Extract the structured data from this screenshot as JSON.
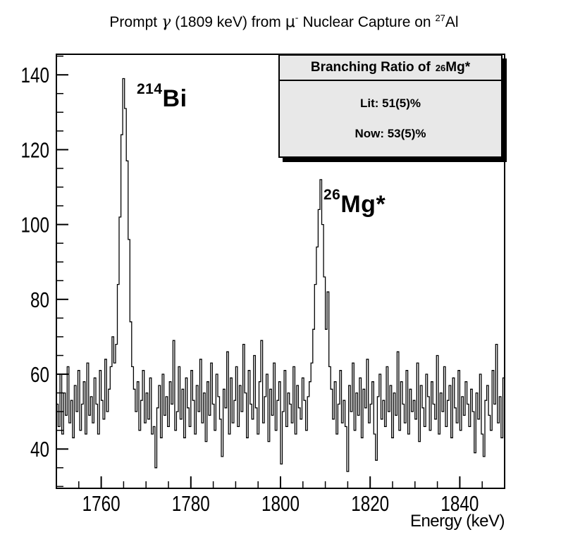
{
  "page": {
    "background": "#ffffff",
    "foreground": "#000000"
  },
  "title": {
    "t1": "Prompt",
    "gamma": "γ",
    "t2": "(1809 keV) from",
    "mu": "μ",
    "mu_sup": "-",
    "t3": "Nuclear Capture on",
    "al_mass": "27",
    "al_symbol": "Al"
  },
  "annotations": {
    "peak1": {
      "mass": "214",
      "symbol": "Bi"
    },
    "peak2": {
      "mass": "26",
      "symbol": "Mg*"
    }
  },
  "legend": {
    "title_prefix": "Branching Ratio of",
    "title_mass": "26",
    "title_symbol": "Mg*",
    "entries": [
      "Lit: 51(5)%",
      "Now: 53(5)%"
    ],
    "bg_color": "#e8e8e8",
    "shadow_color": "#000000"
  },
  "chart_data": {
    "type": "line",
    "style": "histogram-steps",
    "title": "Prompt γ (1809 keV) from μ⁻ Nuclear Capture on ²⁷Al",
    "xlabel": "Energy (keV)",
    "ylabel": "",
    "xlim": [
      1750,
      1850
    ],
    "ylim": [
      29.5,
      145.5
    ],
    "x_major_ticks": [
      1760,
      1780,
      1800,
      1820,
      1840
    ],
    "x_minor_step": 5,
    "y_major_ticks": [
      40,
      60,
      80,
      100,
      120,
      140
    ],
    "y_minor_step": 5,
    "grid": false,
    "legend_position": "top-right",
    "line_color": "#000000",
    "x_start": 1750,
    "bin_width": 0.4,
    "bins": [
      52,
      46,
      60,
      44,
      55,
      49,
      62,
      47,
      53,
      43,
      57,
      50,
      61,
      45,
      52,
      58,
      44,
      63,
      49,
      54,
      47,
      59,
      52,
      44,
      61,
      53,
      48,
      64,
      50,
      56,
      62,
      70,
      63,
      68,
      84,
      102,
      124,
      139,
      131,
      117,
      96,
      74,
      62,
      56,
      50,
      58,
      45,
      53,
      61,
      47,
      55,
      48,
      59,
      44,
      46,
      35,
      51,
      57,
      43,
      60,
      49,
      54,
      46,
      58,
      52,
      69,
      45,
      50,
      62,
      48,
      56,
      43,
      59,
      51,
      46,
      61,
      53,
      44,
      57,
      50,
      64,
      47,
      55,
      42,
      58,
      49,
      63,
      52,
      45,
      60,
      54,
      48,
      38,
      56,
      51,
      66,
      44,
      59,
      47,
      53,
      62,
      46,
      57,
      50,
      68,
      55,
      43,
      61,
      52,
      48,
      65,
      51,
      44,
      58,
      69,
      47,
      54,
      60,
      42,
      56,
      49,
      63,
      45,
      53,
      58,
      36,
      50,
      61,
      46,
      55,
      52,
      47,
      62,
      44,
      57,
      51,
      48,
      59,
      53,
      45,
      54,
      58,
      63,
      72,
      84,
      94,
      104,
      112,
      100,
      86,
      72,
      82,
      62,
      56,
      48,
      58,
      44,
      52,
      61,
      47,
      53,
      46,
      34,
      57,
      50,
      63,
      45,
      55,
      49,
      59,
      43,
      56,
      51,
      64,
      47,
      52,
      58,
      44,
      37,
      54,
      60,
      48,
      53,
      46,
      62,
      50,
      57,
      43,
      55,
      49,
      66,
      45,
      58,
      52,
      47,
      61,
      44,
      56,
      50,
      53,
      48,
      63,
      42,
      57,
      51,
      46,
      60,
      54,
      45,
      58,
      52,
      48,
      65,
      44,
      55,
      50,
      62,
      46,
      53,
      57,
      43,
      59,
      51,
      47,
      61,
      45,
      54,
      49,
      58,
      52,
      46,
      56,
      50,
      39,
      55,
      48,
      60,
      44,
      38,
      53,
      57,
      49,
      45,
      61,
      52,
      68,
      47,
      54,
      43,
      59
    ],
    "peaks": [
      {
        "label": "214Bi",
        "energy_keV": 1765,
        "peak_counts": 139
      },
      {
        "label": "26Mg*",
        "energy_keV": 1809,
        "peak_counts": 112
      }
    ]
  }
}
